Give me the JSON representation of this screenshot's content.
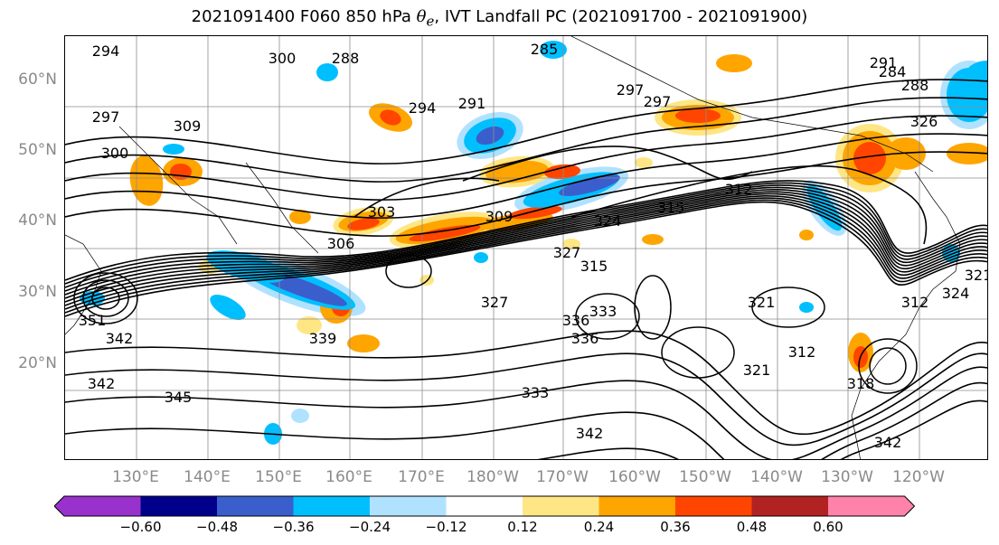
{
  "title": {
    "prefix": "2021091400 F060 850 hPa ",
    "theta": "θ",
    "theta_sub": "e",
    "suffix": ", IVT Landfall PC (2021091700 - 2021091900)"
  },
  "axes": {
    "lat_labels": [
      "60°N",
      "50°N",
      "40°N",
      "30°N",
      "20°N"
    ],
    "lon_labels": [
      "130°E",
      "140°E",
      "150°E",
      "160°E",
      "170°E",
      "180°W",
      "170°W",
      "160°W",
      "150°W",
      "140°W",
      "130°W",
      "120°W"
    ]
  },
  "contour_labels": [
    "294",
    "300",
    "288",
    "285",
    "297",
    "294",
    "291",
    "309",
    "300",
    "297",
    "303",
    "309",
    "306",
    "315",
    "312",
    "324",
    "327",
    "315",
    "333",
    "327",
    "336",
    "336",
    "351",
    "342",
    "339",
    "342",
    "345",
    "333",
    "342",
    "321",
    "321",
    "312",
    "318",
    "312",
    "324",
    "321",
    "342",
    "291",
    "288",
    "284",
    "297",
    "326"
  ],
  "colorbar": {
    "ticks": [
      "−0.60",
      "−0.48",
      "−0.36",
      "−0.24",
      "−0.12",
      "0.12",
      "0.24",
      "0.36",
      "0.48",
      "0.60"
    ],
    "colors": [
      "#9932cc",
      "#00008b",
      "#3a5fcd",
      "#00bfff",
      "#b0e2ff",
      "#ffffff",
      "#ffe685",
      "#ffa500",
      "#ff4500",
      "#b22222",
      "#ff82ab"
    ]
  },
  "colors": {
    "contour": "#000000",
    "grid": "#8c8c8c",
    "coast": "#000000",
    "axis_label": "#8a8a8a"
  }
}
